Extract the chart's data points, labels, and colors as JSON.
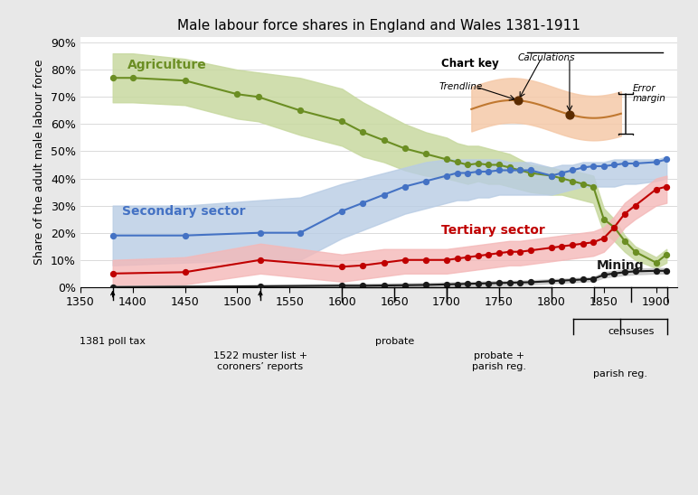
{
  "title": "Male labour force shares in England and Wales 1381-1911",
  "ylabel": "Share of the adult male labour force",
  "xlim": [
    1350,
    1920
  ],
  "ylim": [
    0,
    0.92
  ],
  "yticks": [
    0,
    0.1,
    0.2,
    0.3,
    0.4,
    0.5,
    0.6,
    0.7,
    0.8,
    0.9
  ],
  "ytick_labels": [
    "0%",
    "10%",
    "20%",
    "30%",
    "40%",
    "50%",
    "60%",
    "70%",
    "80%",
    "90%"
  ],
  "xticks": [
    1350,
    1400,
    1450,
    1500,
    1550,
    1600,
    1650,
    1700,
    1750,
    1800,
    1850,
    1900
  ],
  "agri_x": [
    1381,
    1400,
    1450,
    1500,
    1520,
    1560,
    1600,
    1620,
    1640,
    1660,
    1680,
    1700,
    1710,
    1720,
    1730,
    1740,
    1750,
    1760,
    1770,
    1780,
    1800,
    1810,
    1820,
    1830,
    1840,
    1850,
    1860,
    1870,
    1880,
    1900,
    1910
  ],
  "agri_y": [
    0.77,
    0.77,
    0.76,
    0.71,
    0.7,
    0.65,
    0.61,
    0.57,
    0.54,
    0.51,
    0.49,
    0.47,
    0.46,
    0.45,
    0.455,
    0.45,
    0.45,
    0.44,
    0.43,
    0.42,
    0.41,
    0.4,
    0.39,
    0.38,
    0.37,
    0.25,
    0.22,
    0.17,
    0.13,
    0.09,
    0.12
  ],
  "agri_upper": [
    0.86,
    0.86,
    0.84,
    0.8,
    0.79,
    0.77,
    0.73,
    0.68,
    0.64,
    0.6,
    0.57,
    0.55,
    0.53,
    0.52,
    0.52,
    0.51,
    0.5,
    0.49,
    0.47,
    0.45,
    0.44,
    0.43,
    0.43,
    0.42,
    0.41,
    0.29,
    0.25,
    0.19,
    0.15,
    0.11,
    0.14
  ],
  "agri_lower": [
    0.68,
    0.68,
    0.67,
    0.62,
    0.61,
    0.56,
    0.52,
    0.48,
    0.46,
    0.43,
    0.41,
    0.4,
    0.39,
    0.38,
    0.39,
    0.38,
    0.38,
    0.37,
    0.36,
    0.35,
    0.34,
    0.34,
    0.33,
    0.32,
    0.31,
    0.2,
    0.17,
    0.13,
    0.1,
    0.07,
    0.09
  ],
  "agri_color": "#6b8e23",
  "agri_fill": "#c8d9a0",
  "agri_label": "Agriculture",
  "sec_x": [
    1381,
    1450,
    1522,
    1560,
    1600,
    1620,
    1640,
    1660,
    1680,
    1700,
    1710,
    1720,
    1730,
    1740,
    1750,
    1760,
    1770,
    1780,
    1800,
    1810,
    1820,
    1830,
    1840,
    1850,
    1860,
    1870,
    1880,
    1900,
    1910
  ],
  "sec_y": [
    0.19,
    0.19,
    0.2,
    0.2,
    0.28,
    0.31,
    0.34,
    0.37,
    0.39,
    0.41,
    0.42,
    0.42,
    0.425,
    0.425,
    0.43,
    0.43,
    0.43,
    0.43,
    0.41,
    0.42,
    0.43,
    0.44,
    0.445,
    0.445,
    0.45,
    0.455,
    0.455,
    0.46,
    0.47
  ],
  "sec_upper": [
    0.3,
    0.3,
    0.32,
    0.33,
    0.38,
    0.4,
    0.42,
    0.44,
    0.46,
    0.47,
    0.47,
    0.47,
    0.47,
    0.47,
    0.47,
    0.46,
    0.46,
    0.46,
    0.44,
    0.45,
    0.45,
    0.46,
    0.46,
    0.46,
    0.47,
    0.47,
    0.47,
    0.47,
    0.48
  ],
  "sec_lower": [
    0.08,
    0.09,
    0.1,
    0.1,
    0.18,
    0.21,
    0.24,
    0.27,
    0.29,
    0.31,
    0.32,
    0.32,
    0.33,
    0.33,
    0.34,
    0.34,
    0.34,
    0.34,
    0.34,
    0.35,
    0.36,
    0.37,
    0.37,
    0.37,
    0.37,
    0.38,
    0.38,
    0.39,
    0.4
  ],
  "sec_color": "#4472c4",
  "sec_fill": "#b8cce4",
  "sec_label": "Secondary sector",
  "tert_x": [
    1381,
    1450,
    1522,
    1600,
    1620,
    1640,
    1660,
    1680,
    1700,
    1710,
    1720,
    1730,
    1740,
    1750,
    1760,
    1770,
    1780,
    1800,
    1810,
    1820,
    1830,
    1840,
    1850,
    1860,
    1870,
    1880,
    1900,
    1910
  ],
  "tert_y": [
    0.05,
    0.055,
    0.1,
    0.075,
    0.08,
    0.09,
    0.1,
    0.1,
    0.1,
    0.105,
    0.11,
    0.115,
    0.12,
    0.125,
    0.13,
    0.13,
    0.135,
    0.145,
    0.15,
    0.155,
    0.16,
    0.165,
    0.18,
    0.22,
    0.27,
    0.3,
    0.36,
    0.37
  ],
  "tert_upper": [
    0.1,
    0.11,
    0.16,
    0.12,
    0.13,
    0.14,
    0.14,
    0.14,
    0.14,
    0.145,
    0.15,
    0.155,
    0.16,
    0.165,
    0.17,
    0.17,
    0.175,
    0.185,
    0.19,
    0.195,
    0.2,
    0.205,
    0.22,
    0.26,
    0.31,
    0.34,
    0.4,
    0.41
  ],
  "tert_lower": [
    0.0,
    0.01,
    0.05,
    0.02,
    0.03,
    0.04,
    0.05,
    0.05,
    0.05,
    0.055,
    0.06,
    0.065,
    0.07,
    0.075,
    0.08,
    0.08,
    0.085,
    0.095,
    0.1,
    0.105,
    0.11,
    0.115,
    0.13,
    0.17,
    0.22,
    0.25,
    0.3,
    0.31
  ],
  "tert_color": "#c00000",
  "tert_fill": "#f4b8b8",
  "tert_label": "Tertiary sector",
  "mine_x": [
    1381,
    1522,
    1600,
    1620,
    1640,
    1660,
    1680,
    1700,
    1710,
    1720,
    1730,
    1740,
    1750,
    1760,
    1770,
    1780,
    1800,
    1810,
    1820,
    1830,
    1840,
    1850,
    1860,
    1870,
    1880,
    1900,
    1910
  ],
  "mine_y": [
    0.0,
    0.003,
    0.005,
    0.005,
    0.006,
    0.007,
    0.008,
    0.01,
    0.011,
    0.012,
    0.013,
    0.014,
    0.015,
    0.016,
    0.017,
    0.018,
    0.022,
    0.024,
    0.026,
    0.028,
    0.03,
    0.045,
    0.05,
    0.055,
    0.058,
    0.06,
    0.06
  ],
  "mine_upper": [
    0.005,
    0.008,
    0.012,
    0.012,
    0.013,
    0.014,
    0.015,
    0.017,
    0.018,
    0.019,
    0.02,
    0.021,
    0.022,
    0.023,
    0.024,
    0.025,
    0.029,
    0.031,
    0.033,
    0.035,
    0.037,
    0.055,
    0.06,
    0.065,
    0.068,
    0.07,
    0.07
  ],
  "mine_lower": [
    0.0,
    0.0,
    0.0,
    0.0,
    0.0,
    0.0,
    0.001,
    0.002,
    0.003,
    0.004,
    0.005,
    0.006,
    0.007,
    0.008,
    0.009,
    0.01,
    0.014,
    0.016,
    0.018,
    0.02,
    0.022,
    0.035,
    0.04,
    0.044,
    0.047,
    0.05,
    0.05
  ],
  "mine_color": "#1a1a1a",
  "mine_fill": "#c0c0c0",
  "mine_label": "Mining",
  "bg_color": "#e8e8e8",
  "plot_bg": "#ffffff"
}
